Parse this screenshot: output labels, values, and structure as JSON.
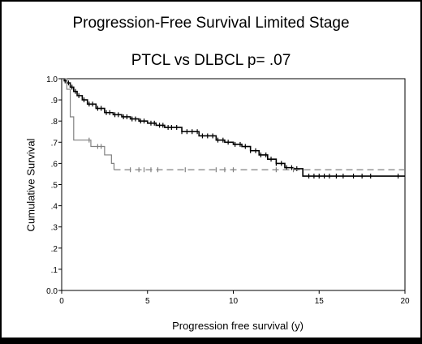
{
  "chart_data": {
    "type": "line",
    "title": "Progression-Free Survival Limited Stage",
    "subtitle": "PTCL vs DLBCL  p= .07",
    "xlabel": "Progression free survival (y)",
    "ylabel": "Cumulative Survival",
    "xlim": [
      0,
      20
    ],
    "ylim": [
      0,
      1.0
    ],
    "x_ticks": [
      "0",
      "5",
      "10",
      "15",
      "20"
    ],
    "y_ticks": [
      "0.0",
      ".1",
      ".2",
      ".3",
      ".4",
      ".5",
      ".6",
      ".7",
      ".8",
      ".9",
      "1.0"
    ],
    "grid": false,
    "series": [
      {
        "style": "solid-black",
        "color": "#000000",
        "step": [
          [
            0,
            1.0
          ],
          [
            0.15,
            0.99
          ],
          [
            0.3,
            0.98
          ],
          [
            0.5,
            0.96
          ],
          [
            0.7,
            0.94
          ],
          [
            0.9,
            0.92
          ],
          [
            1.2,
            0.9
          ],
          [
            1.5,
            0.88
          ],
          [
            2,
            0.86
          ],
          [
            2.5,
            0.84
          ],
          [
            3,
            0.83
          ],
          [
            3.5,
            0.82
          ],
          [
            4,
            0.81
          ],
          [
            4.5,
            0.8
          ],
          [
            5,
            0.79
          ],
          [
            5.5,
            0.78
          ],
          [
            6,
            0.77
          ],
          [
            7,
            0.75
          ],
          [
            8,
            0.73
          ],
          [
            9,
            0.71
          ],
          [
            9.5,
            0.7
          ],
          [
            10,
            0.69
          ],
          [
            10.5,
            0.68
          ],
          [
            11,
            0.66
          ],
          [
            11.5,
            0.64
          ],
          [
            12,
            0.62
          ],
          [
            12.5,
            0.6
          ],
          [
            13,
            0.58
          ],
          [
            13.5,
            0.575
          ],
          [
            14.05,
            0.54
          ],
          [
            20,
            0.54
          ]
        ],
        "censored_x": [
          0.2,
          0.4,
          0.6,
          0.8,
          1.0,
          1.3,
          1.6,
          1.8,
          2.1,
          2.3,
          2.6,
          2.8,
          3.1,
          3.3,
          3.6,
          3.8,
          4.1,
          4.3,
          4.6,
          4.8,
          5.2,
          5.4,
          5.7,
          5.9,
          6.2,
          6.4,
          6.7,
          7.0,
          7.3,
          7.6,
          7.9,
          8.2,
          8.5,
          8.8,
          9.1,
          9.4,
          9.7,
          10.1,
          10.4,
          10.7,
          11.0,
          11.3,
          11.6,
          11.9,
          12.2,
          12.5,
          12.8,
          13.1,
          13.4,
          13.7,
          14.4,
          14.7,
          15.0,
          15.3,
          15.6,
          16.0,
          16.4,
          17.0,
          17.5,
          18.0,
          19.6
        ]
      },
      {
        "style": "solid-gray, dashed after last event",
        "color": "#808080",
        "step": [
          [
            0,
            1.0
          ],
          [
            0.3,
            0.95
          ],
          [
            0.5,
            0.82
          ],
          [
            0.7,
            0.71
          ],
          [
            1.7,
            0.68
          ],
          [
            2.5,
            0.64
          ],
          [
            2.9,
            0.6
          ],
          [
            3.05,
            0.57
          ]
        ],
        "dashed_to": 20,
        "censored_x": [
          1.6,
          2.1,
          2.3,
          4.0,
          4.5,
          4.8,
          5.2,
          5.6,
          7.2,
          9.0,
          9.5,
          10.0,
          12.5,
          13.5
        ]
      }
    ]
  }
}
